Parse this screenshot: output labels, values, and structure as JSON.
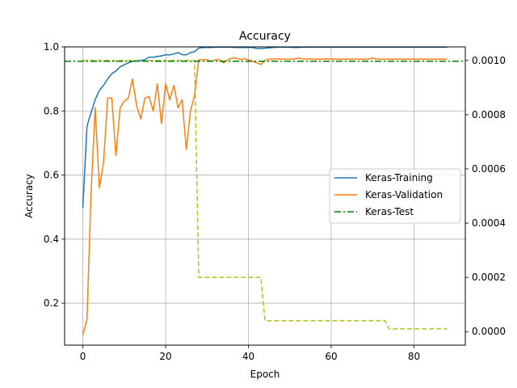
{
  "chart_data": {
    "type": "line",
    "title": "Accuracy",
    "xlabel": "Epoch",
    "ylabel": "Accuracy",
    "y2label": "",
    "xlim": [
      -4.4,
      92.4
    ],
    "ylim": [
      0.069,
      1.0
    ],
    "y2lim": [
      -5e-05,
      0.00105
    ],
    "x_ticks": [
      0,
      20,
      40,
      60,
      80
    ],
    "y_ticks": [
      0.2,
      0.4,
      0.6,
      0.8,
      1.0
    ],
    "y2_ticks": [
      0.0,
      0.0002,
      0.0004,
      0.0006,
      0.0008,
      0.001
    ],
    "y_tick_labels": [
      "0.2",
      "0.4",
      "0.6",
      "0.8",
      "1.0"
    ],
    "y2_tick_labels": [
      "0.0000",
      "0.0002",
      "0.0004",
      "0.0006",
      "0.0008",
      "0.0010"
    ],
    "x_tick_labels": [
      "0",
      "20",
      "40",
      "60",
      "80"
    ],
    "grid": true,
    "legend_position": "center-right",
    "colors": {
      "training": "#1f77b4",
      "validation": "#ff7f0e",
      "test": "#008000",
      "secondary": "#bcbd22",
      "grid": "#b0b0b0"
    },
    "series": [
      {
        "name": "Keras-Training",
        "axis": "left",
        "style": "solid",
        "x": [
          0,
          1,
          2,
          3,
          4,
          5,
          6,
          7,
          8,
          9,
          10,
          11,
          12,
          13,
          14,
          15,
          16,
          17,
          18,
          19,
          20,
          21,
          22,
          23,
          24,
          25,
          26,
          27,
          28,
          29,
          30,
          31,
          32,
          33,
          34,
          35,
          36,
          37,
          38,
          39,
          40,
          41,
          42,
          43,
          44,
          45,
          46,
          47,
          48,
          49,
          50,
          51,
          52,
          53,
          54,
          55,
          56,
          57,
          58,
          59,
          60,
          61,
          62,
          63,
          64,
          65,
          66,
          67,
          68,
          69,
          70,
          71,
          72,
          73,
          74,
          75,
          76,
          77,
          78,
          79,
          80,
          81,
          82,
          83,
          84,
          85,
          86,
          87,
          88
        ],
        "y": [
          0.497,
          0.753,
          0.795,
          0.836,
          0.864,
          0.88,
          0.9,
          0.916,
          0.925,
          0.938,
          0.944,
          0.95,
          0.955,
          0.955,
          0.958,
          0.96,
          0.968,
          0.968,
          0.97,
          0.972,
          0.975,
          0.975,
          0.978,
          0.982,
          0.976,
          0.975,
          0.982,
          0.985,
          0.996,
          0.998,
          0.998,
          0.998,
          0.999,
          0.999,
          0.999,
          0.999,
          0.999,
          0.998,
          0.998,
          0.998,
          0.998,
          0.998,
          0.995,
          0.995,
          0.996,
          0.997,
          0.998,
          0.999,
          0.999,
          0.999,
          0.999,
          0.998,
          0.998,
          0.999,
          0.999,
          0.999,
          0.999,
          0.999,
          0.999,
          0.999,
          0.999,
          0.999,
          0.999,
          0.999,
          0.999,
          0.999,
          0.999,
          0.999,
          0.999,
          0.999,
          0.999,
          0.999,
          0.999,
          0.999,
          0.999,
          0.999,
          0.999,
          0.999,
          0.999,
          0.999,
          0.999,
          0.999,
          0.999,
          0.999,
          0.999,
          0.999,
          0.999,
          0.999,
          0.999
        ]
      },
      {
        "name": "Keras-Validation",
        "axis": "left",
        "style": "solid",
        "x": [
          0,
          1,
          2,
          3,
          4,
          5,
          6,
          7,
          8,
          9,
          10,
          11,
          12,
          13,
          14,
          15,
          16,
          17,
          18,
          19,
          20,
          21,
          22,
          23,
          24,
          25,
          26,
          27,
          28,
          29,
          30,
          31,
          32,
          33,
          34,
          35,
          36,
          37,
          38,
          39,
          40,
          41,
          42,
          43,
          44,
          45,
          46,
          47,
          48,
          49,
          50,
          51,
          52,
          53,
          54,
          55,
          56,
          57,
          58,
          59,
          60,
          61,
          62,
          63,
          64,
          65,
          66,
          67,
          68,
          69,
          70,
          71,
          72,
          73,
          74,
          75,
          76,
          77,
          78,
          79,
          80,
          81,
          82,
          83,
          84,
          85,
          86,
          87,
          88
        ],
        "y": [
          0.1,
          0.15,
          0.55,
          0.81,
          0.56,
          0.64,
          0.84,
          0.84,
          0.66,
          0.81,
          0.83,
          0.84,
          0.9,
          0.815,
          0.775,
          0.84,
          0.845,
          0.8,
          0.885,
          0.76,
          0.885,
          0.835,
          0.88,
          0.81,
          0.835,
          0.68,
          0.8,
          0.85,
          0.96,
          0.96,
          0.96,
          0.955,
          0.96,
          0.96,
          0.95,
          0.96,
          0.965,
          0.965,
          0.96,
          0.963,
          0.96,
          0.955,
          0.95,
          0.945,
          0.958,
          0.962,
          0.962,
          0.963,
          0.962,
          0.962,
          0.962,
          0.962,
          0.965,
          0.963,
          0.962,
          0.963,
          0.962,
          0.962,
          0.962,
          0.963,
          0.962,
          0.962,
          0.962,
          0.962,
          0.962,
          0.962,
          0.962,
          0.962,
          0.962,
          0.962,
          0.965,
          0.962,
          0.962,
          0.962,
          0.962,
          0.962,
          0.962,
          0.962,
          0.962,
          0.962,
          0.962,
          0.962,
          0.962,
          0.962,
          0.962,
          0.962,
          0.962,
          0.962,
          0.962
        ]
      },
      {
        "name": "Keras-Test",
        "axis": "left",
        "style": "dashdot",
        "x": [
          -4.4,
          92.4
        ],
        "y": [
          0.955,
          0.955
        ]
      },
      {
        "axis": "right",
        "style": "dashed",
        "x": [
          0,
          27,
          28,
          43,
          44,
          73,
          74,
          88
        ],
        "y": [
          0.001,
          0.001,
          0.0002,
          0.0002,
          4e-05,
          4e-05,
          1e-05,
          1e-05
        ]
      }
    ]
  }
}
